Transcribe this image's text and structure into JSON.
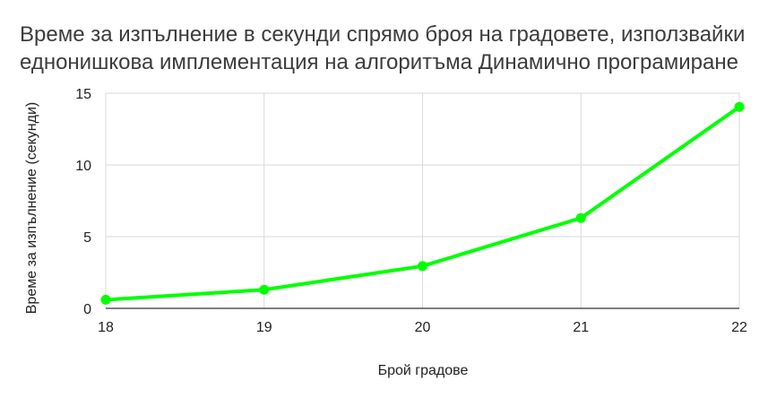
{
  "chart_data": {
    "type": "line",
    "title_lines": [
      "Време за изпълнение в секунди спрямо броя на градовете, използвайки",
      "еднонишкова имплементация на алгоритъма Динамично програмиране"
    ],
    "xlabel": "Брой градове",
    "ylabel": "Време за изпълнение (секунди)",
    "x": [
      18,
      19,
      20,
      21,
      22
    ],
    "x_tick_labels": [
      "18",
      "19",
      "20",
      "21",
      "22"
    ],
    "y_ticks": [
      0,
      5,
      10,
      15
    ],
    "y_tick_labels": [
      "0",
      "5",
      "10",
      "15"
    ],
    "ylim": [
      0,
      15
    ],
    "grid": true,
    "series": [
      {
        "values": [
          0.6,
          1.3,
          2.95,
          6.3,
          14.05
        ],
        "color": "#00ff00"
      }
    ]
  }
}
